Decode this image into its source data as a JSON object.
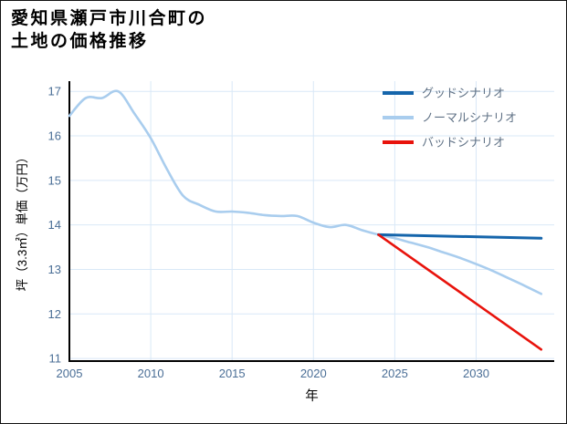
{
  "header": {
    "title_line1": "愛知県瀬戸市川合町の",
    "title_line2": "土地の価格推移"
  },
  "chart_data": {
    "type": "line",
    "title": "愛知県瀬戸市川合町の土地の価格推移",
    "xlabel": "年",
    "ylabel": "坪（3.3㎡）単価（万円）",
    "xlim": [
      2005,
      2034.8
    ],
    "ylim": [
      10.94,
      17.23
    ],
    "xticks": [
      2005,
      2010,
      2015,
      2020,
      2025,
      2030
    ],
    "yticks": [
      11,
      12,
      13,
      14,
      15,
      16,
      17
    ],
    "grid": true,
    "legend_position": "top-right",
    "series": [
      {
        "name": "グッドシナリオ",
        "color": "#1565ab",
        "line_width": 3,
        "x": [
          2024,
          2034
        ],
        "y": [
          13.78,
          13.7
        ]
      },
      {
        "name": "ノーマルシナリオ",
        "color": "#a9cdee",
        "line_width": 2.6,
        "x": [
          2005,
          2006,
          2007,
          2008,
          2009,
          2010,
          2011,
          2012,
          2013,
          2014,
          2015,
          2016,
          2017,
          2018,
          2019,
          2020,
          2021,
          2022,
          2023,
          2024,
          2025,
          2026,
          2027,
          2028,
          2029,
          2030,
          2031,
          2032,
          2033,
          2034
        ],
        "y": [
          16.45,
          16.85,
          16.85,
          17.0,
          16.5,
          15.95,
          15.25,
          14.65,
          14.45,
          14.3,
          14.3,
          14.27,
          14.22,
          14.2,
          14.2,
          14.05,
          13.95,
          14.0,
          13.88,
          13.78,
          13.7,
          13.6,
          13.5,
          13.38,
          13.26,
          13.12,
          12.97,
          12.8,
          12.63,
          12.45
        ]
      },
      {
        "name": "バッドシナリオ",
        "color": "#e8130c",
        "line_width": 2.6,
        "x": [
          2024,
          2034
        ],
        "y": [
          13.78,
          11.2
        ]
      }
    ]
  },
  "style": {
    "grid_color": "#d9e8f7",
    "axis_color": "#000000",
    "tick_label_color": "#4a6e96",
    "legend_text_color": "#607286",
    "title_color": "#000000",
    "background_color": "#ffffff"
  }
}
